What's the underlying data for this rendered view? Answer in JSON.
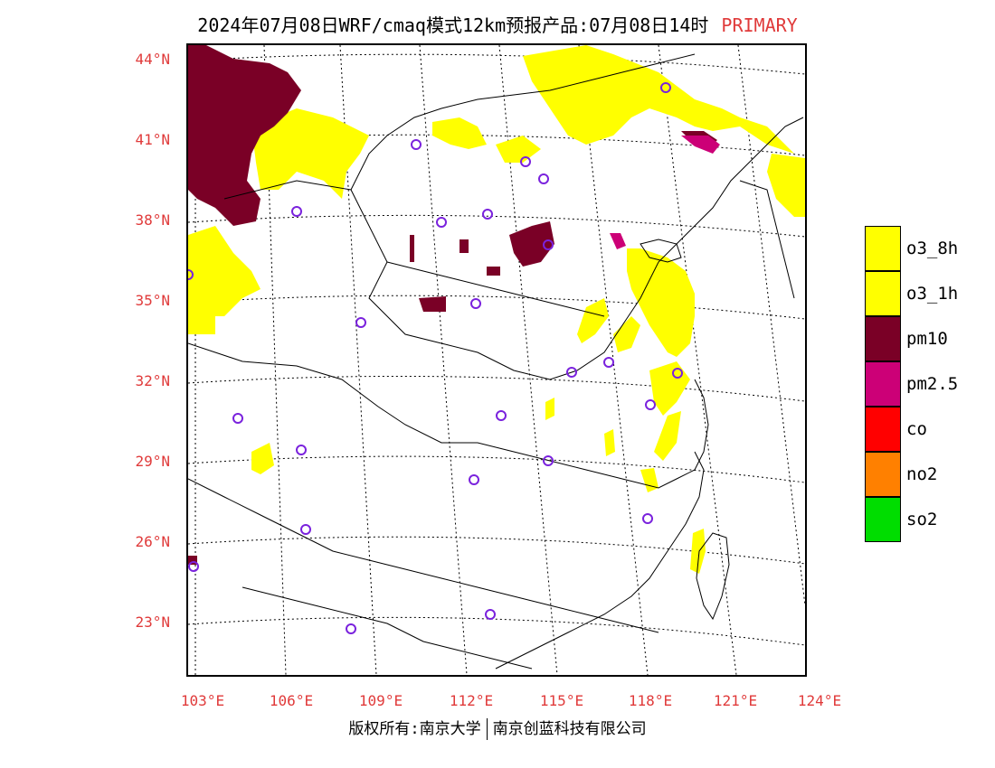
{
  "header": {
    "title": "2024年07月08日WRF/cmaq模式12km预报产品:07月08日14时",
    "tag": "PRIMARY"
  },
  "axes": {
    "lat_labels": [
      "44°N",
      "41°N",
      "38°N",
      "35°N",
      "32°N",
      "29°N",
      "26°N",
      "23°N"
    ],
    "lon_labels": [
      "103°E",
      "106°E",
      "109°E",
      "112°E",
      "115°E",
      "118°E",
      "121°E",
      "124°E"
    ]
  },
  "legend": {
    "items": [
      {
        "label": "o3_8h",
        "color": "#ffff00"
      },
      {
        "label": "o3_1h",
        "color": "#ffff00"
      },
      {
        "label": "pm10",
        "color": "#7a0026"
      },
      {
        "label": "pm2.5",
        "color": "#cc0077"
      },
      {
        "label": "co",
        "color": "#ff0000"
      },
      {
        "label": "no2",
        "color": "#ff8000"
      },
      {
        "label": "so2",
        "color": "#00dd00"
      }
    ]
  },
  "footer": {
    "left": "版权所有:南京大学",
    "right": "南京创蓝科技有限公司"
  },
  "colors": {
    "o3": "#ffff00",
    "pm10": "#7a0026",
    "pm25": "#cc0077",
    "station": "#7a22dd",
    "axis_label": "#e03a3a"
  }
}
